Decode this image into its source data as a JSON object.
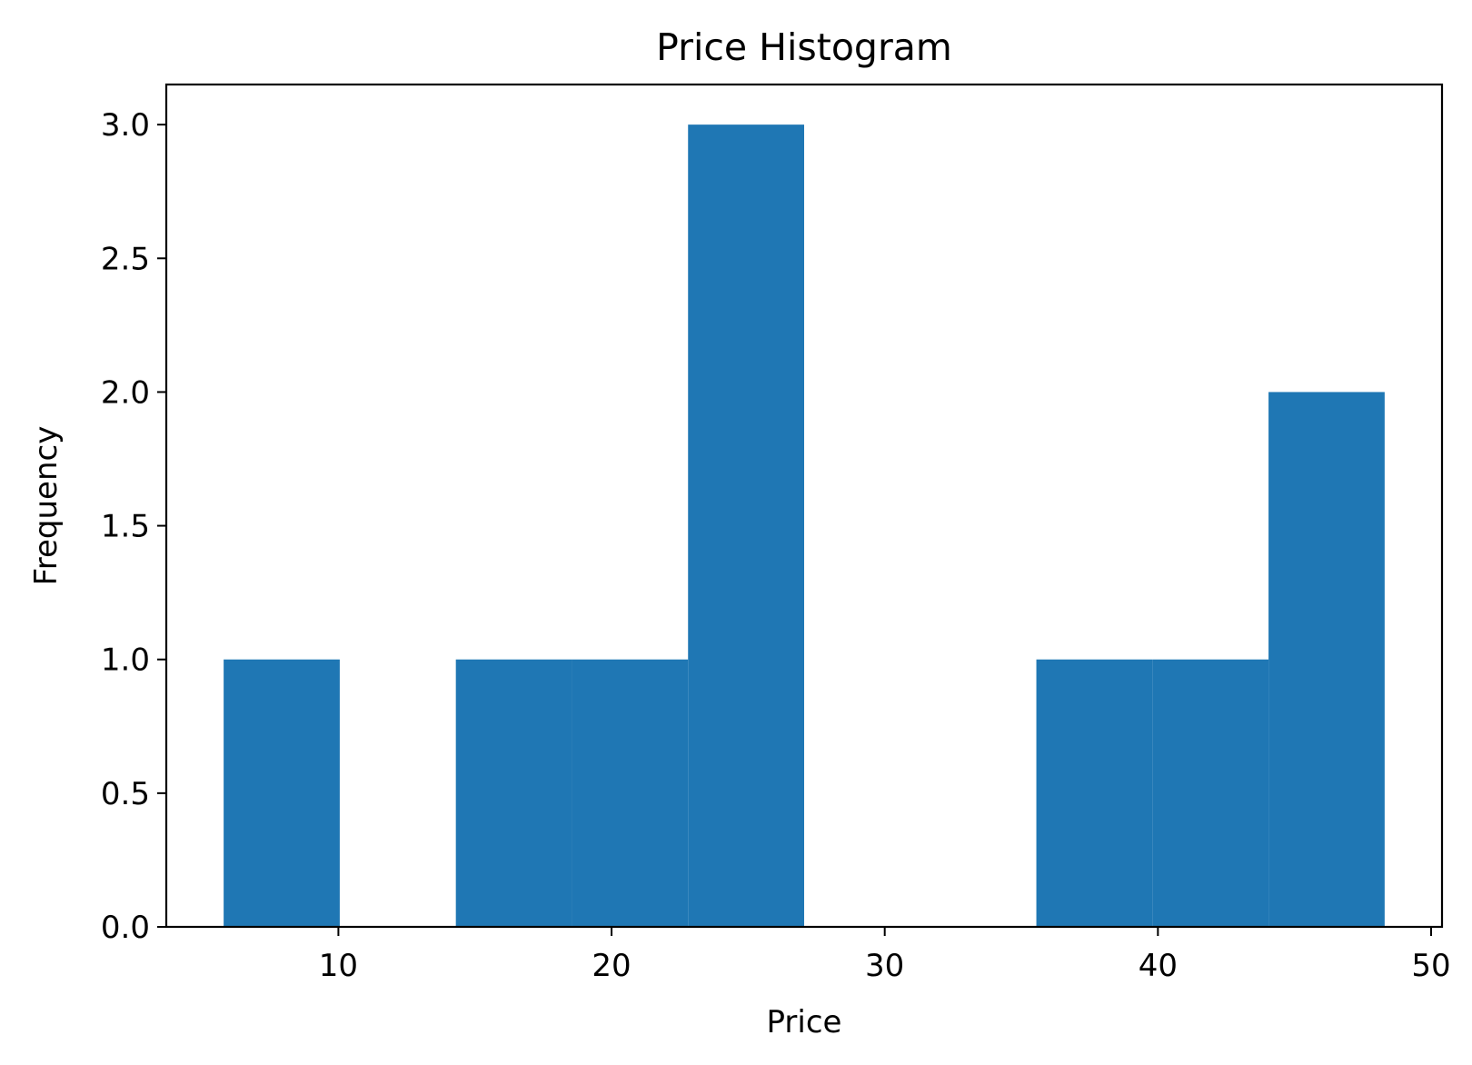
{
  "chart_data": {
    "type": "bar",
    "title": "Price Histogram",
    "xlabel": "Price",
    "ylabel": "Frequency",
    "bins": [
      {
        "x0": 5.8,
        "x1": 10.05,
        "count": 1
      },
      {
        "x0": 10.05,
        "x1": 14.3,
        "count": 0
      },
      {
        "x0": 14.3,
        "x1": 18.55,
        "count": 1
      },
      {
        "x0": 18.55,
        "x1": 22.8,
        "count": 1
      },
      {
        "x0": 22.8,
        "x1": 27.05,
        "count": 3
      },
      {
        "x0": 27.05,
        "x1": 31.3,
        "count": 0
      },
      {
        "x0": 31.3,
        "x1": 35.55,
        "count": 0
      },
      {
        "x0": 35.55,
        "x1": 39.8,
        "count": 1
      },
      {
        "x0": 39.8,
        "x1": 44.05,
        "count": 1
      },
      {
        "x0": 44.05,
        "x1": 48.3,
        "count": 2
      }
    ],
    "xlim": [
      3.7,
      50.4
    ],
    "ylim": [
      0,
      3.15
    ],
    "xticks": [
      {
        "value": 10,
        "label": "10"
      },
      {
        "value": 20,
        "label": "20"
      },
      {
        "value": 30,
        "label": "30"
      },
      {
        "value": 40,
        "label": "40"
      },
      {
        "value": 50,
        "label": "50"
      }
    ],
    "yticks": [
      {
        "value": 0,
        "label": "0.0"
      },
      {
        "value": 0.5,
        "label": "0.5"
      },
      {
        "value": 1,
        "label": "1.0"
      },
      {
        "value": 1.5,
        "label": "1.5"
      },
      {
        "value": 2,
        "label": "2.0"
      },
      {
        "value": 2.5,
        "label": "2.5"
      },
      {
        "value": 3,
        "label": "3.0"
      }
    ],
    "bar_color": "#1f77b4",
    "grid": false,
    "legend": "none"
  }
}
